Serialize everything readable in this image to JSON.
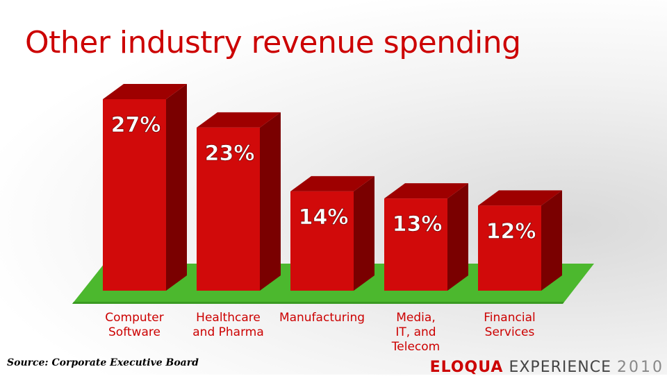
{
  "slide": {
    "title": "Other industry revenue spending",
    "source": "Source: Corporate Executive Board",
    "brand_part1": "ELOQUA",
    "brand_part2": "EXPERIENCE",
    "brand_part3": "2010"
  },
  "colors": {
    "title": "#cc0000",
    "bar_front": "#d10a0a",
    "bar_side": "#7a0000",
    "bar_top": "#9e0000",
    "floor": "#4cb82e",
    "label": "#cc0000"
  },
  "chart_data": {
    "type": "bar",
    "title": "Other industry revenue spending",
    "categories": [
      "Computer\nSoftware",
      "Healthcare\nand Pharma",
      "Manufacturing",
      "Media,\nIT, and\nTelecom",
      "Financial\nServices"
    ],
    "values": [
      27,
      23,
      14,
      13,
      12
    ],
    "data_labels": [
      "27%",
      "23%",
      "14%",
      "13%",
      "12%"
    ],
    "ylim": [
      0,
      30
    ],
    "grid": false,
    "legend": "none",
    "style": "3d"
  }
}
